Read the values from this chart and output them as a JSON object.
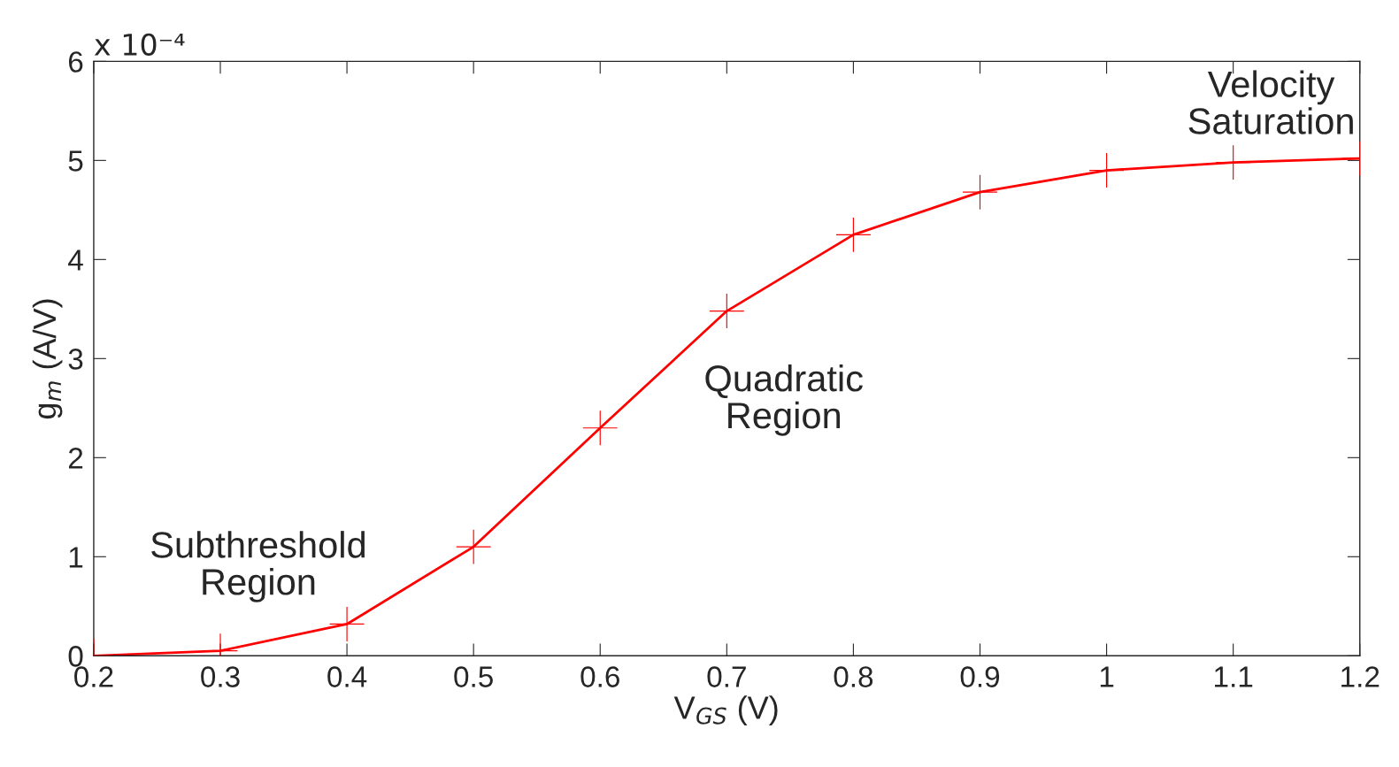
{
  "chart_data": {
    "type": "line",
    "xlabel": "V$_{GS}$ (V)",
    "ylabel": "g$_{m}$ (A/V)",
    "x": [
      0.2,
      0.3,
      0.4,
      0.5,
      0.6,
      0.7,
      0.8,
      0.9,
      1.0,
      1.1,
      1.2
    ],
    "series": [
      {
        "color": "#ff0000",
        "values": [
          0.0,
          0.05,
          0.32,
          1.1,
          2.3,
          3.48,
          4.25,
          4.68,
          4.9,
          4.98,
          5.02
        ]
      }
    ],
    "xlim": [
      0.2,
      1.2
    ],
    "xticks": [
      0.2,
      0.3,
      0.4,
      0.5,
      0.6,
      0.7,
      0.8,
      0.9,
      {
        "value": 1.0,
        "label": "1"
      },
      1.1,
      1.2
    ],
    "ylim": [
      0,
      6
    ],
    "yticks": [
      0,
      1,
      2,
      3,
      4,
      5,
      6
    ],
    "marker": "cross",
    "line_style": "solid",
    "grid": false,
    "legend": false,
    "annotations": [
      "x 10⁻⁴",
      "Subthreshold\nRegion",
      "Quadratic\nRegion",
      "Velocity\nSaturation"
    ]
  }
}
